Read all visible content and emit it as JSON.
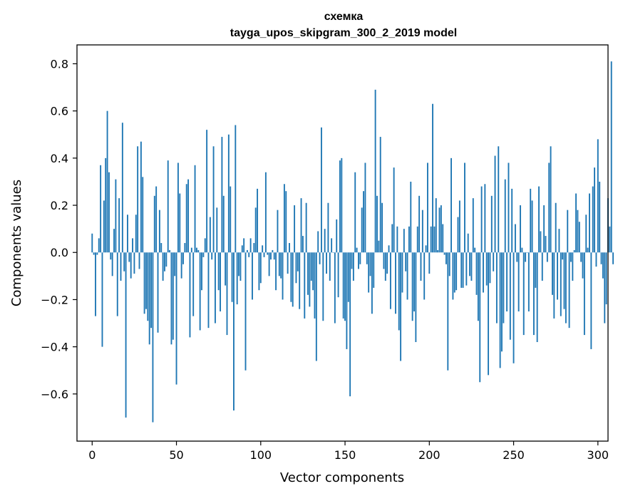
{
  "chart_data": {
    "type": "bar",
    "title": "схемка",
    "subtitle": "tayga_upos_skipgram_300_2_2019 model",
    "xlabel": "Vector components",
    "ylabel": "Components values",
    "xlim": [
      -9,
      306
    ],
    "ylim": [
      -0.8,
      0.88
    ],
    "xticks": [
      0,
      50,
      100,
      150,
      200,
      250,
      300
    ],
    "xtick_labels": [
      "0",
      "50",
      "100",
      "150",
      "200",
      "250",
      "300"
    ],
    "yticks": [
      -0.6,
      -0.4,
      -0.2,
      0.0,
      0.2,
      0.4,
      0.6,
      0.8
    ],
    "ytick_labels": [
      "−0.6",
      "−0.4",
      "−0.2",
      "0.0",
      "0.2",
      "0.4",
      "0.6",
      "0.8"
    ],
    "grid": false,
    "color": "#1f77b4",
    "x_start": 0,
    "values": [
      0.08,
      -0.01,
      -0.27,
      -0.01,
      0.06,
      0.37,
      -0.4,
      0.22,
      0.4,
      0.6,
      0.34,
      -0.03,
      -0.1,
      0.1,
      0.31,
      -0.27,
      0.23,
      -0.12,
      0.55,
      -0.08,
      -0.7,
      0.16,
      -0.04,
      -0.11,
      0.06,
      -0.09,
      0.16,
      0.45,
      -0.07,
      0.47,
      0.32,
      -0.26,
      -0.24,
      -0.29,
      -0.39,
      -0.32,
      -0.72,
      0.24,
      0.28,
      -0.34,
      0.18,
      0.04,
      -0.12,
      -0.08,
      -0.06,
      0.39,
      0.01,
      -0.39,
      -0.37,
      -0.1,
      -0.56,
      0.38,
      0.25,
      -0.11,
      -0.05,
      0.04,
      0.29,
      0.31,
      -0.36,
      0.02,
      -0.27,
      0.37,
      0.02,
      0.01,
      -0.33,
      -0.16,
      -0.02,
      0.06,
      0.52,
      -0.32,
      0.15,
      -0.03,
      0.45,
      -0.3,
      0.19,
      -0.16,
      -0.25,
      0.49,
      0.24,
      -0.14,
      -0.35,
      0.5,
      0.28,
      -0.21,
      -0.67,
      0.54,
      -0.22,
      -0.1,
      -0.12,
      0.03,
      0.06,
      -0.5,
      0.01,
      -0.02,
      0.06,
      -0.2,
      0.04,
      0.19,
      0.27,
      -0.16,
      -0.13,
      0.03,
      -0.02,
      0.34,
      -0.01,
      -0.1,
      -0.03,
      0.01,
      -0.03,
      -0.16,
      0.18,
      -0.1,
      -0.11,
      -0.2,
      0.29,
      0.26,
      -0.09,
      0.04,
      -0.21,
      -0.23,
      0.2,
      -0.13,
      -0.08,
      -0.24,
      0.23,
      0.07,
      -0.28,
      0.21,
      -0.18,
      -0.23,
      -0.12,
      -0.16,
      -0.28,
      -0.46,
      0.09,
      -0.05,
      0.53,
      -0.29,
      0.1,
      -0.09,
      0.21,
      -0.12,
      0.06,
      0.0,
      -0.3,
      0.14,
      -0.19,
      0.39,
      0.4,
      -0.28,
      -0.29,
      -0.41,
      -0.21,
      -0.61,
      -0.07,
      -0.12,
      0.34,
      0.02,
      -0.07,
      -0.05,
      0.19,
      0.26,
      0.38,
      -0.05,
      -0.17,
      -0.1,
      -0.26,
      -0.15,
      0.69,
      0.24,
      0.05,
      0.49,
      0.21,
      -0.07,
      -0.12,
      -0.09,
      0.03,
      -0.24,
      0.12,
      0.36,
      -0.26,
      0.11,
      -0.33,
      -0.46,
      -0.17,
      0.1,
      -0.08,
      -0.2,
      0.11,
      0.3,
      -0.29,
      -0.25,
      -0.38,
      0.11,
      0.24,
      -0.12,
      0.18,
      -0.2,
      0.03,
      0.38,
      -0.09,
      0.11,
      0.63,
      0.11,
      0.23,
      0.01,
      0.19,
      0.2,
      0.12,
      -0.01,
      -0.05,
      -0.5,
      -0.1,
      0.4,
      -0.2,
      -0.17,
      -0.16,
      0.15,
      0.22,
      -0.15,
      -0.15,
      0.38,
      -0.14,
      0.08,
      -0.1,
      -0.12,
      0.23,
      0.02,
      -0.18,
      -0.29,
      -0.55,
      0.28,
      -0.17,
      0.29,
      -0.14,
      -0.52,
      -0.13,
      0.24,
      -0.08,
      0.41,
      -0.3,
      0.45,
      -0.49,
      -0.42,
      -0.3,
      0.31,
      -0.25,
      0.38,
      -0.37,
      0.27,
      -0.47,
      0.12,
      -0.04,
      -0.25,
      0.2,
      0.02,
      -0.35,
      -0.04,
      0.0,
      -0.25,
      0.27,
      0.22,
      -0.35,
      -0.15,
      -0.38,
      0.28,
      0.09,
      -0.12,
      0.2,
      0.07,
      -0.04,
      0.38,
      0.45,
      -0.18,
      -0.28,
      0.21,
      -0.2,
      0.1,
      -0.27,
      -0.03,
      -0.24,
      -0.3,
      0.18,
      -0.32,
      -0.04,
      -0.12,
      0.01,
      0.25,
      0.18,
      0.13,
      -0.04,
      -0.11,
      -0.35,
      0.16,
      0.02,
      0.25,
      -0.41,
      0.28,
      0.36,
      -0.06,
      0.48,
      0.3,
      -0.05,
      -0.11,
      -0.3,
      -0.22,
      0.23,
      0.11,
      0.81,
      -0.05
    ]
  }
}
